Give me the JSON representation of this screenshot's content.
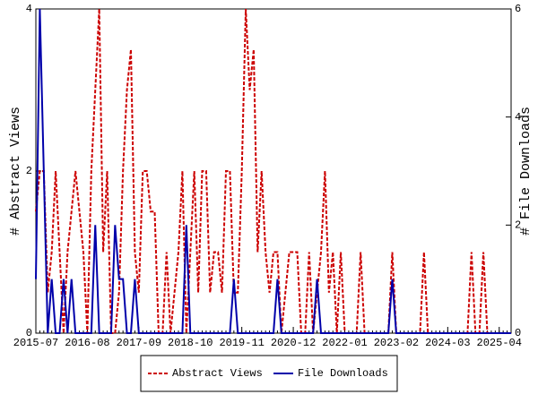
{
  "chart_data": {
    "type": "line",
    "ylabel": "# Abstract Views",
    "y2label": "# File Downloads",
    "x": [
      "2015-07",
      "2015-08",
      "2015-09",
      "2015-10",
      "2015-11",
      "2015-12",
      "2016-01",
      "2016-02",
      "2016-03",
      "2016-04",
      "2016-05",
      "2016-06",
      "2016-07",
      "2016-08",
      "2016-09",
      "2016-10",
      "2016-11",
      "2016-12",
      "2017-01",
      "2017-02",
      "2017-03",
      "2017-04",
      "2017-05",
      "2017-06",
      "2017-07",
      "2017-08",
      "2017-09",
      "2017-10",
      "2017-11",
      "2017-12",
      "2018-01",
      "2018-02",
      "2018-03",
      "2018-04",
      "2018-05",
      "2018-06",
      "2018-07",
      "2018-08",
      "2018-09",
      "2018-10",
      "2018-11",
      "2018-12",
      "2019-01",
      "2019-02",
      "2019-03",
      "2019-04",
      "2019-05",
      "2019-06",
      "2019-07",
      "2019-08",
      "2019-09",
      "2019-10",
      "2019-11",
      "2019-12",
      "2020-01",
      "2020-02",
      "2020-03",
      "2020-04",
      "2020-05",
      "2020-06",
      "2020-07",
      "2020-08",
      "2020-09",
      "2020-10",
      "2020-11",
      "2020-12",
      "2021-01",
      "2021-02",
      "2021-03",
      "2021-04",
      "2021-05",
      "2021-06",
      "2021-07",
      "2021-08",
      "2021-09",
      "2021-10",
      "2021-11",
      "2021-12",
      "2022-01",
      "2022-02",
      "2022-03",
      "2022-04",
      "2022-05",
      "2022-06",
      "2022-07",
      "2022-08",
      "2022-09",
      "2022-10",
      "2022-11",
      "2022-12",
      "2023-01",
      "2023-02",
      "2023-03",
      "2023-04",
      "2023-05",
      "2023-06",
      "2023-07",
      "2023-08",
      "2023-09",
      "2023-10",
      "2023-11",
      "2023-12",
      "2024-01",
      "2024-02",
      "2024-03",
      "2024-04",
      "2024-05",
      "2024-06",
      "2024-07",
      "2024-08",
      "2024-09",
      "2024-10",
      "2024-11",
      "2024-12",
      "2025-01",
      "2025-02",
      "2025-03",
      "2025-04",
      "2025-05",
      "2025-06",
      "2025-07"
    ],
    "xticks": [
      "2015-07",
      "2016-08",
      "2017-09",
      "2018-10",
      "2019-11",
      "2020-12",
      "2022-01",
      "2023-02",
      "2024-03",
      "2025-04"
    ],
    "ylim": [
      0,
      4
    ],
    "yticks": [
      0,
      2,
      4
    ],
    "y2lim": [
      0,
      6
    ],
    "y2ticks": [
      0,
      2,
      4,
      6
    ],
    "legend": "bottom",
    "series": [
      {
        "name": "Abstract Views",
        "color": "#cc0000",
        "line_style": "dashed",
        "values": [
          1.5,
          2,
          2,
          0.5,
          1,
          2,
          1,
          0,
          1,
          1.5,
          2,
          1.5,
          1,
          0,
          2,
          3,
          4,
          1,
          2,
          0,
          0,
          0.5,
          2,
          3,
          3.5,
          1,
          0.5,
          2,
          2,
          1.5,
          1.5,
          0,
          0,
          1,
          0,
          0.5,
          1,
          2,
          0,
          1,
          2,
          0.5,
          2,
          2,
          0.5,
          1,
          1,
          0.5,
          2,
          2,
          0.5,
          0.5,
          2,
          4,
          3,
          3.5,
          1,
          2,
          1,
          0.5,
          1,
          1,
          0,
          0.5,
          1,
          1,
          1,
          0,
          0,
          1,
          0,
          0.5,
          1,
          2,
          0.5,
          1,
          0,
          1,
          0,
          0,
          0,
          0,
          1,
          0,
          0,
          0,
          0,
          0,
          0,
          0,
          1,
          0,
          0,
          0,
          0,
          0,
          0,
          0,
          1,
          0,
          0,
          0,
          0,
          0,
          0,
          0,
          0,
          0,
          0,
          0,
          1,
          0,
          0,
          1,
          0,
          0,
          0,
          0,
          0,
          0,
          0
        ]
      },
      {
        "name": "File Downloads",
        "color": "#0000aa",
        "line_style": "solid",
        "axis": "y2",
        "values": [
          1,
          6,
          3,
          0,
          1,
          0,
          0,
          1,
          0,
          1,
          0,
          0,
          0,
          0,
          0,
          2,
          0,
          0,
          0,
          0,
          2,
          1,
          1,
          0,
          0,
          1,
          0,
          0,
          0,
          0,
          0,
          0,
          0,
          0,
          0,
          0,
          0,
          0,
          2,
          0,
          0,
          0,
          0,
          0,
          0,
          0,
          0,
          0,
          0,
          0,
          1,
          0,
          0,
          0,
          0,
          0,
          0,
          0,
          0,
          0,
          0,
          1,
          0,
          0,
          0,
          0,
          0,
          0,
          0,
          0,
          0,
          1,
          0,
          0,
          0,
          0,
          0,
          0,
          0,
          0,
          0,
          0,
          0,
          0,
          0,
          0,
          0,
          0,
          0,
          0,
          1,
          0,
          0,
          0,
          0,
          0,
          0,
          0,
          0,
          0,
          0,
          0,
          0,
          0,
          0,
          0,
          0,
          0,
          0,
          0,
          0,
          0,
          0,
          0,
          0,
          0,
          0,
          0,
          0,
          0,
          0
        ]
      }
    ]
  }
}
